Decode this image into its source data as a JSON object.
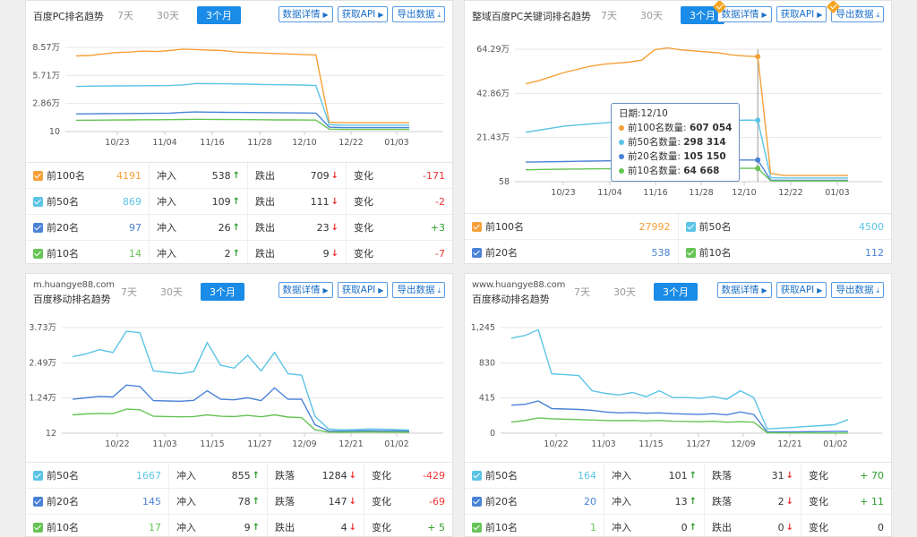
{
  "colors": {
    "orange": "#f5a038",
    "cyan": "#5bc4e5",
    "blue": "#4a82d6",
    "green": "#65c455",
    "accent": "#1a8be6"
  },
  "panels": [
    {
      "title": "百度PC排名趋势",
      "tabs": [
        "7天",
        "30天",
        "3个月"
      ],
      "buttons": [
        "数据详情",
        "获取API",
        "导出数据"
      ],
      "stats": [
        {
          "label": "前100名",
          "value": "4191",
          "in_label": "冲入",
          "in": "538",
          "out_label": "跌出",
          "out": "709",
          "chg_label": "变化",
          "chg": "-171"
        },
        {
          "label": "前50名",
          "value": "869",
          "in_label": "冲入",
          "in": "109",
          "out_label": "跌出",
          "out": "111",
          "chg_label": "变化",
          "chg": "-2"
        },
        {
          "label": "前20名",
          "value": "97",
          "in_label": "冲入",
          "in": "26",
          "out_label": "跌出",
          "out": "23",
          "chg_label": "变化",
          "chg": "+3"
        },
        {
          "label": "前10名",
          "value": "14",
          "in_label": "冲入",
          "in": "2",
          "out_label": "跌出",
          "out": "9",
          "chg_label": "变化",
          "chg": "-7"
        }
      ]
    },
    {
      "title": "整域百度PC关键词排名趋势",
      "tabs": [
        "7天",
        "30天",
        "3个月"
      ],
      "buttons": [
        "数据详情",
        "获取API",
        "导出数据"
      ],
      "stats": [
        {
          "label": "前100名",
          "value": "27992"
        },
        {
          "label": "前50名",
          "value": "4500"
        },
        {
          "label": "前20名",
          "value": "538"
        },
        {
          "label": "前10名",
          "value": "112"
        }
      ],
      "tooltip": {
        "date_label": "日期:",
        "date": "12/10",
        "rows": [
          {
            "label": "前100名数量:",
            "value": "607 054"
          },
          {
            "label": "前50名数量:",
            "value": "298 314"
          },
          {
            "label": "前20名数量:",
            "value": "105 150"
          },
          {
            "label": "前10名数量:",
            "value": "64 668"
          }
        ]
      }
    },
    {
      "title_line1": "m.huangye88.com",
      "title_line2": "百度移动排名趋势",
      "tabs": [
        "7天",
        "30天",
        "3个月"
      ],
      "buttons": [
        "数据详情",
        "获取API",
        "导出数据"
      ],
      "stats": [
        {
          "label": "前50名",
          "value": "1667",
          "in_label": "冲入",
          "in": "855",
          "out_label": "跌落",
          "out": "1284",
          "chg_label": "变化",
          "chg": "-429"
        },
        {
          "label": "前20名",
          "value": "145",
          "in_label": "冲入",
          "in": "78",
          "out_label": "跌落",
          "out": "147",
          "chg_label": "变化",
          "chg": "-69"
        },
        {
          "label": "前10名",
          "value": "17",
          "in_label": "冲入",
          "in": "9",
          "out_label": "跌出",
          "out": "4",
          "chg_label": "变化",
          "chg": "+ 5"
        }
      ]
    },
    {
      "title_line1": "www.huangye88.com",
      "title_line2": "百度移动排名趋势",
      "tabs": [
        "7天",
        "30天",
        "3个月"
      ],
      "buttons": [
        "数据详情",
        "获取API",
        "导出数据"
      ],
      "stats": [
        {
          "label": "前50名",
          "value": "164",
          "in_label": "冲入",
          "in": "101",
          "out_label": "跌落",
          "out": "31",
          "chg_label": "变化",
          "chg": "+ 70"
        },
        {
          "label": "前20名",
          "value": "20",
          "in_label": "冲入",
          "in": "13",
          "out_label": "跌落",
          "out": "2",
          "chg_label": "变化",
          "chg": "+ 11"
        },
        {
          "label": "前10名",
          "value": "1",
          "in_label": "冲入",
          "in": "0",
          "out_label": "跌出",
          "out": "0",
          "chg_label": "变化",
          "chg": "0"
        }
      ]
    }
  ],
  "chart_data": [
    {
      "type": "line",
      "x_ticks": [
        "10/23",
        "11/04",
        "11/16",
        "11/28",
        "12/10",
        "12/22",
        "01/03"
      ],
      "y_ticks": [
        "10",
        "2.86万",
        "5.71万",
        "8.57万"
      ],
      "ylim": [
        10,
        85700
      ],
      "series": [
        {
          "name": "前100名",
          "color": "#f5a038",
          "values": [
            77000,
            77500,
            79000,
            80500,
            81000,
            82000,
            81500,
            82500,
            84000,
            83500,
            83000,
            82500,
            81000,
            80500,
            80000,
            79500,
            79000,
            78500,
            78000,
            9500,
            9000,
            9000,
            9000,
            9000,
            9000,
            9000
          ]
        },
        {
          "name": "前50名",
          "color": "#5bc4e5",
          "values": [
            46000,
            46200,
            46400,
            46500,
            46600,
            46700,
            46800,
            46900,
            47500,
            49000,
            48800,
            48700,
            48500,
            48300,
            48000,
            47800,
            47600,
            47400,
            47000,
            7000,
            6500,
            6500,
            6500,
            6500,
            6500,
            6500
          ]
        },
        {
          "name": "前20名",
          "color": "#4a82d6",
          "values": [
            18000,
            18100,
            18200,
            18300,
            18400,
            18500,
            18600,
            18800,
            19500,
            20000,
            19800,
            19600,
            19500,
            19400,
            19300,
            19200,
            19100,
            19000,
            18800,
            4500,
            4000,
            4000,
            4000,
            4000,
            4000,
            4000
          ]
        },
        {
          "name": "前10名",
          "color": "#65c455",
          "values": [
            11500,
            11600,
            11700,
            11800,
            11900,
            12000,
            12000,
            12100,
            12300,
            12500,
            12400,
            12300,
            12200,
            12100,
            12000,
            11900,
            11900,
            11800,
            11700,
            2500,
            2200,
            2200,
            2200,
            2200,
            2200,
            2200
          ]
        }
      ]
    },
    {
      "type": "line",
      "x_ticks": [
        "10/23",
        "11/04",
        "11/16",
        "11/28",
        "12/10",
        "12/22",
        "01/03"
      ],
      "y_ticks": [
        "58",
        "21.43万",
        "42.86万",
        "64.29万"
      ],
      "ylim": [
        58,
        642900
      ],
      "series": [
        {
          "name": "前100名",
          "color": "#f5a038",
          "values": [
            475000,
            490000,
            510000,
            530000,
            545000,
            560000,
            570000,
            575000,
            580000,
            590000,
            640000,
            650000,
            640000,
            635000,
            630000,
            625000,
            615000,
            610000,
            607054,
            40000,
            30000,
            30000,
            30000,
            30000,
            30000,
            30000
          ]
        },
        {
          "name": "前50名",
          "color": "#5bc4e5",
          "values": [
            240000,
            250000,
            260000,
            270000,
            275000,
            280000,
            285000,
            290000,
            295000,
            300000,
            305000,
            310000,
            300000,
            298000,
            296000,
            295000,
            297000,
            299000,
            298314,
            20000,
            18000,
            18000,
            18000,
            18000,
            18000,
            18000
          ]
        },
        {
          "name": "前20名",
          "color": "#4a82d6",
          "values": [
            95000,
            96000,
            97000,
            98000,
            99000,
            100000,
            101000,
            102000,
            103000,
            104000,
            107000,
            110000,
            108000,
            107000,
            106000,
            105500,
            105000,
            105200,
            105150,
            8000,
            7000,
            7000,
            7000,
            7000,
            7000,
            7000
          ]
        },
        {
          "name": "前10名",
          "color": "#65c455",
          "values": [
            58000,
            59000,
            60000,
            61000,
            61500,
            62000,
            62500,
            63000,
            63500,
            64000,
            66000,
            67000,
            66500,
            66000,
            65500,
            65000,
            64800,
            64700,
            64668,
            5000,
            4000,
            4000,
            4000,
            4000,
            4000,
            4000
          ]
        }
      ]
    },
    {
      "type": "line",
      "x_ticks": [
        "10/22",
        "11/03",
        "11/15",
        "11/27",
        "12/09",
        "12/21",
        "01/02"
      ],
      "y_ticks": [
        "12",
        "1.24万",
        "2.49万",
        "3.73万"
      ],
      "ylim": [
        12,
        37300
      ],
      "series": [
        {
          "name": "前50名",
          "color": "#5bc4e5",
          "values": [
            27000,
            28000,
            29500,
            28500,
            36000,
            35500,
            22000,
            21500,
            21000,
            21800,
            32000,
            24000,
            23000,
            27500,
            22000,
            28500,
            21000,
            20500,
            6000,
            1500,
            1200,
            1300,
            1500,
            1400,
            1300,
            1100
          ]
        },
        {
          "name": "前20名",
          "color": "#4a82d6",
          "values": [
            12000,
            12500,
            13000,
            12800,
            17000,
            16500,
            11500,
            11400,
            11300,
            11600,
            15000,
            12000,
            11800,
            12500,
            11500,
            16000,
            12000,
            12000,
            3000,
            800,
            700,
            800,
            900,
            800,
            800,
            700
          ]
        },
        {
          "name": "前10名",
          "color": "#65c455",
          "values": [
            6500,
            6800,
            7000,
            6900,
            8500,
            8300,
            6000,
            5900,
            5800,
            5900,
            6500,
            6000,
            5900,
            6300,
            5800,
            6500,
            5700,
            5500,
            1200,
            400,
            350,
            400,
            450,
            400,
            400,
            350
          ]
        }
      ]
    },
    {
      "type": "line",
      "x_ticks": [
        "10/22",
        "11/03",
        "11/15",
        "11/27",
        "12/09",
        "12/21",
        "01/02"
      ],
      "y_ticks": [
        "0",
        "415",
        "830",
        "1,245"
      ],
      "ylim": [
        0,
        1245
      ],
      "series": [
        {
          "name": "前50名",
          "color": "#5bc4e5",
          "values": [
            1120,
            1150,
            1220,
            700,
            690,
            680,
            500,
            470,
            450,
            480,
            430,
            500,
            420,
            420,
            410,
            430,
            400,
            500,
            420,
            50,
            60,
            70,
            80,
            90,
            100,
            160
          ]
        },
        {
          "name": "前20名",
          "color": "#4a82d6",
          "values": [
            330,
            340,
            380,
            290,
            285,
            280,
            270,
            250,
            240,
            245,
            235,
            240,
            230,
            225,
            220,
            230,
            215,
            250,
            220,
            15,
            15,
            15,
            18,
            18,
            20,
            20
          ]
        },
        {
          "name": "前10名",
          "color": "#65c455",
          "values": [
            130,
            150,
            180,
            170,
            165,
            160,
            155,
            150,
            148,
            150,
            145,
            150,
            140,
            138,
            135,
            140,
            130,
            135,
            130,
            5,
            3,
            2,
            2,
            1,
            1,
            1
          ]
        }
      ]
    }
  ]
}
